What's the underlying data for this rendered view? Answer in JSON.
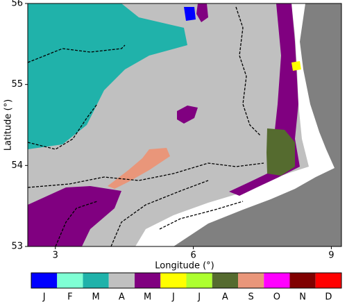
{
  "map": {
    "xlabel": "Longitude (°)",
    "ylabel": "Latitude (°)",
    "xlim": [
      2.4,
      9.22
    ],
    "ylim": [
      53,
      56
    ],
    "xticks": [
      3,
      6,
      9
    ],
    "yticks": [
      53,
      54,
      55,
      56
    ],
    "colorbar": {
      "labels": [
        "J",
        "F",
        "M",
        "A",
        "M",
        "J",
        "J",
        "A",
        "S",
        "O",
        "N",
        "D"
      ],
      "colors": [
        "#0000ff",
        "#7fffd4",
        "#20b2aa",
        "#c0c0c0",
        "#800080",
        "#ffff00",
        "#adff2f",
        "#556b2f",
        "#e9967a",
        "#ff00ff",
        "#800000",
        "#ff0000"
      ]
    }
  }
}
